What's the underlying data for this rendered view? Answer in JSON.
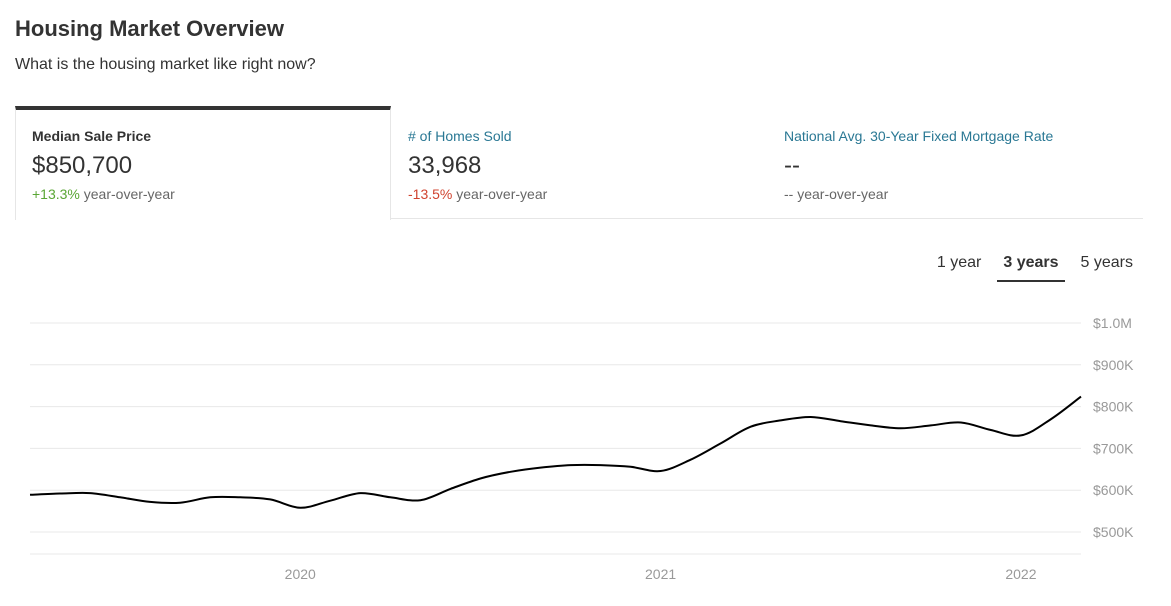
{
  "header": {
    "title": "Housing Market Overview",
    "subtitle": "What is the housing market like right now?"
  },
  "tabs": [
    {
      "label": "Median Sale Price",
      "value": "$850,700",
      "change": "+13.3%",
      "change_suffix": " year-over-year",
      "active": true
    },
    {
      "label": "# of Homes Sold",
      "value": "33,968",
      "change": "-13.5%",
      "change_suffix": " year-over-year",
      "active": false
    },
    {
      "label": "National Avg. 30-Year Fixed Mortgage Rate",
      "value": "--",
      "change": "--",
      "change_suffix": " year-over-year",
      "active": false
    }
  ],
  "ranges": [
    {
      "label": "1 year",
      "active": false
    },
    {
      "label": "3 years",
      "active": true
    },
    {
      "label": "5 years",
      "active": false
    }
  ],
  "colors": {
    "positive": "#5aa635",
    "negative": "#d0432f",
    "link": "#2a7894",
    "line": "#000000"
  },
  "chart_data": {
    "type": "line",
    "title": "",
    "xlabel": "",
    "ylabel": "",
    "x_ticks": [
      "2020",
      "2021",
      "2022"
    ],
    "y_ticks": [
      "$500K",
      "$600K",
      "$700K",
      "$800K",
      "$900K",
      "$1.0M"
    ],
    "ylim": [
      500000,
      1000000
    ],
    "xlim": [
      "2019-04",
      "2022-03"
    ],
    "grid": true,
    "series": [
      {
        "x": [
          "2019-04",
          "2019-05",
          "2019-06",
          "2019-07",
          "2019-08",
          "2019-09",
          "2019-10",
          "2019-11",
          "2019-12",
          "2020-01",
          "2020-02",
          "2020-03",
          "2020-04",
          "2020-05",
          "2020-06",
          "2020-07",
          "2020-08",
          "2020-09",
          "2020-10",
          "2020-11",
          "2020-12",
          "2021-01",
          "2021-02",
          "2021-03",
          "2021-04",
          "2021-05",
          "2021-06",
          "2021-07",
          "2021-08",
          "2021-09",
          "2021-10",
          "2021-11",
          "2021-12",
          "2022-01",
          "2022-02",
          "2022-03"
        ],
        "values": [
          589000,
          592000,
          593000,
          583000,
          572000,
          570000,
          583000,
          583000,
          578000,
          558000,
          575000,
          593000,
          583000,
          576000,
          603000,
          628000,
          644000,
          654000,
          660000,
          660000,
          656000,
          646000,
          673000,
          712000,
          752000,
          767000,
          775000,
          765000,
          755000,
          748000,
          755000,
          762000,
          744000,
          731000,
          770000,
          824000
        ]
      }
    ]
  }
}
